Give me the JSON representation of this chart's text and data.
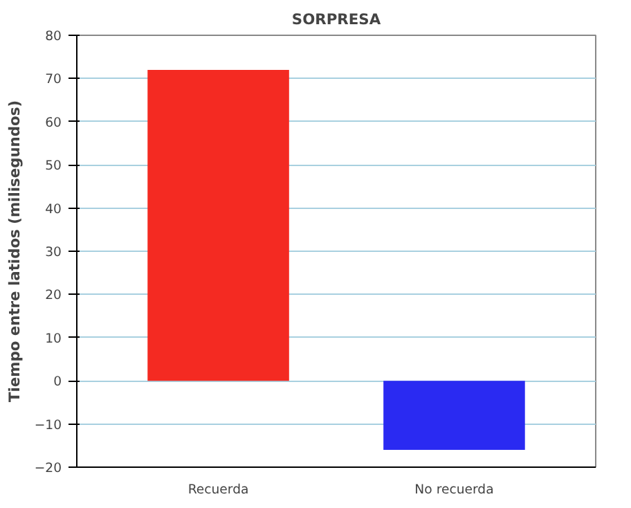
{
  "chart_data": {
    "type": "bar",
    "title": "SORPRESA",
    "ylabel": "Tiempo entre latidos (milisegundos)",
    "categories": [
      "Recuerda",
      "No recuerda"
    ],
    "values": [
      72,
      -16
    ],
    "colors": [
      "#f42a22",
      "#2a2af2"
    ],
    "ylim": [
      -20,
      80
    ],
    "yticks": [
      -20,
      -10,
      0,
      10,
      20,
      30,
      40,
      50,
      60,
      70,
      80
    ],
    "grid": "y"
  }
}
